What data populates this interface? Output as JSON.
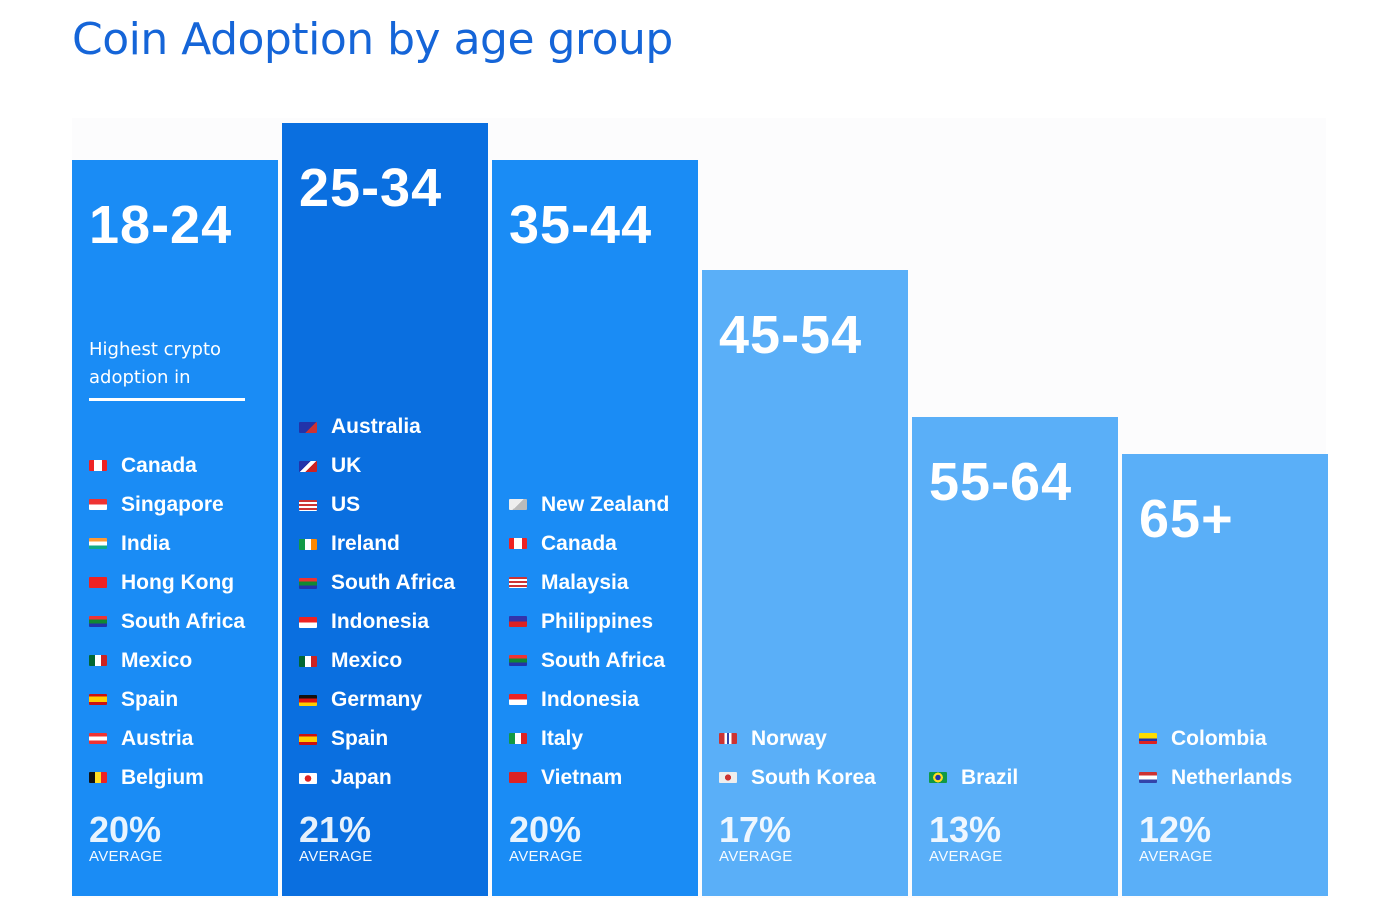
{
  "chart_data": {
    "type": "bar",
    "title": "Coin Adoption by age group",
    "xlabel": "",
    "ylabel": "",
    "ylim": [
      0,
      21
    ],
    "average_label": "AVERAGE",
    "categories": [
      "18-24",
      "25-34",
      "35-44",
      "45-54",
      "55-64",
      "65+"
    ],
    "values": [
      20,
      21,
      20,
      17,
      13,
      12
    ],
    "value_labels": [
      "20%",
      "21%",
      "20%",
      "17%",
      "13%",
      "12%"
    ],
    "note": [
      "Highest crypto adoption in",
      "",
      "",
      "",
      "",
      ""
    ],
    "countries": [
      [
        "Canada",
        "Singapore",
        "India",
        "Hong Kong",
        "South Africa",
        "Mexico",
        "Spain",
        "Austria",
        "Belgium"
      ],
      [
        "Australia",
        "UK",
        "US",
        "Ireland",
        "South Africa",
        "Indonesia",
        "Mexico",
        "Germany",
        "Spain",
        "Japan"
      ],
      [
        "New Zealand",
        "Canada",
        "Malaysia",
        "Philippines",
        "South Africa",
        "Indonesia",
        "Italy",
        "Vietnam"
      ],
      [
        "Norway",
        "South Korea"
      ],
      [
        "Brazil"
      ],
      [
        "Colombia",
        "Netherlands"
      ]
    ],
    "colors": {
      "bar": "#1a8cf5",
      "bar_highlight": "#0a6fe0",
      "bar_light": "#5aaff8",
      "title": "#1565d8"
    },
    "bar_style": [
      "bar",
      "bar_highlight",
      "bar",
      "bar_light",
      "bar_light",
      "bar_light"
    ]
  }
}
